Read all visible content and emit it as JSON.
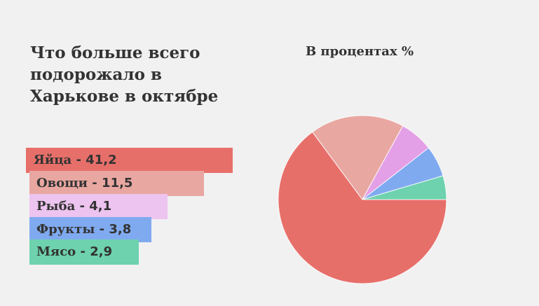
{
  "headline": {
    "lines": [
      "Что больше всего",
      "подорожало в",
      "Харькове в октябре"
    ]
  },
  "legend": {
    "separator": " - "
  },
  "colors": {
    "background": "#f1f1f1",
    "text": "#333333",
    "slice_border": "#ffffff"
  },
  "chart_data": {
    "type": "pie",
    "title": "В процентах %",
    "categories": [
      "Яйца",
      "Овощи",
      "Рыба",
      "Фрукты",
      "Мясо"
    ],
    "values": [
      41.2,
      11.5,
      4.1,
      3.8,
      2.9
    ],
    "value_labels": [
      "41,2",
      "11,5",
      "4,1",
      "3,8",
      "2,9"
    ],
    "colors": [
      "#e76f6a",
      "#e9a7a2",
      "#e4a0e6",
      "#80aaf0",
      "#6dd2ad"
    ],
    "label_colors": [
      "#e76f6a",
      "#e9a7a2",
      "#edc3ef",
      "#80aaf0",
      "#6dd2ad"
    ],
    "start": "right",
    "direction": "clockwise",
    "legend_placement": "left"
  }
}
